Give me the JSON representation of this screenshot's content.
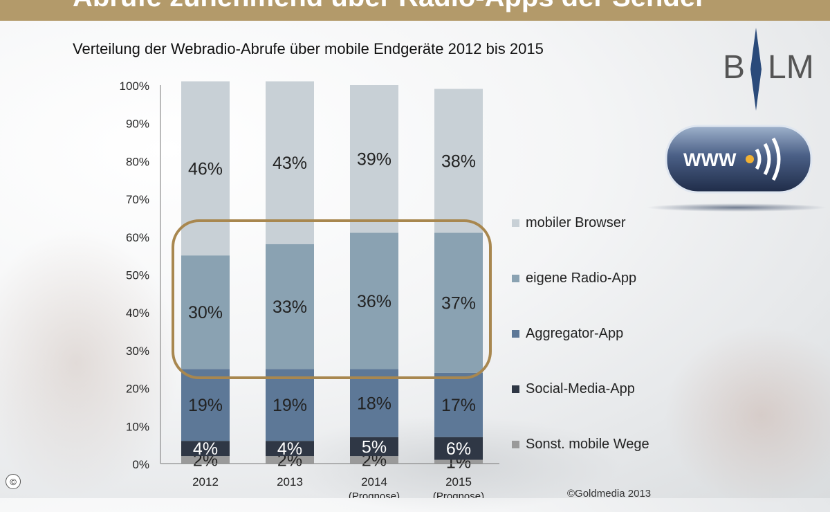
{
  "header": {
    "title": "Abrufe zunehmend über Radio-Apps der Sender",
    "subtitle": "Verteilung der Webradio-Abrufe über mobile Endgeräte 2012 bis 2015"
  },
  "logo": {
    "text_left": "B",
    "text_right": "LM"
  },
  "badge": {
    "text": "WWW"
  },
  "footer": {
    "copyright": "©Goldmedia 2013",
    "corner_symbol": "©"
  },
  "colors": {
    "mobiler_browser": "#c8d0d6",
    "eigene_radio_app": "#8aa2b2",
    "aggregator_app": "#5d7897",
    "social_media_app": "#2f3745",
    "sonst": "#9a9a9a",
    "highlight_box": "#a8874f",
    "title_bar": "#b39a6a"
  },
  "chart_data": {
    "type": "bar",
    "stacked": true,
    "categories": [
      "2012",
      "2013",
      "2014",
      "2015"
    ],
    "category_sublabels": [
      "",
      "",
      "(Prognose)",
      "(Prognose)"
    ],
    "series": [
      {
        "name": "Sonst. mobile Wege",
        "values": [
          2,
          2,
          2,
          1
        ],
        "labels": [
          "2%",
          "2%",
          "2%",
          "1%"
        ],
        "color": "#9a9a9a"
      },
      {
        "name": "Social-Media-App",
        "values": [
          4,
          4,
          5,
          6
        ],
        "labels": [
          "4%",
          "4%",
          "5%",
          "6%"
        ],
        "color": "#2f3745"
      },
      {
        "name": "Aggregator-App",
        "values": [
          19,
          19,
          18,
          17
        ],
        "labels": [
          "19%",
          "19%",
          "18%",
          "17%"
        ],
        "color": "#5d7897"
      },
      {
        "name": "eigene Radio-App",
        "values": [
          30,
          33,
          36,
          37
        ],
        "labels": [
          "30%",
          "33%",
          "36%",
          "37%"
        ],
        "color": "#8aa2b2"
      },
      {
        "name": "mobiler Browser",
        "values": [
          46,
          43,
          39,
          38
        ],
        "labels": [
          "46%",
          "43%",
          "39%",
          "38%"
        ],
        "color": "#c8d0d6"
      }
    ],
    "ylim": [
      0,
      100
    ],
    "yticks": [
      "0%",
      "10%",
      "20%",
      "30%",
      "40%",
      "50%",
      "60%",
      "70%",
      "80%",
      "90%",
      "100%"
    ],
    "legend": [
      "mobiler Browser",
      "eigene Radio-App",
      "Aggregator-App",
      "Social-Media-App",
      "Sonst. mobile Wege"
    ],
    "legend_position": "right",
    "highlight": "eigene Radio-App"
  }
}
